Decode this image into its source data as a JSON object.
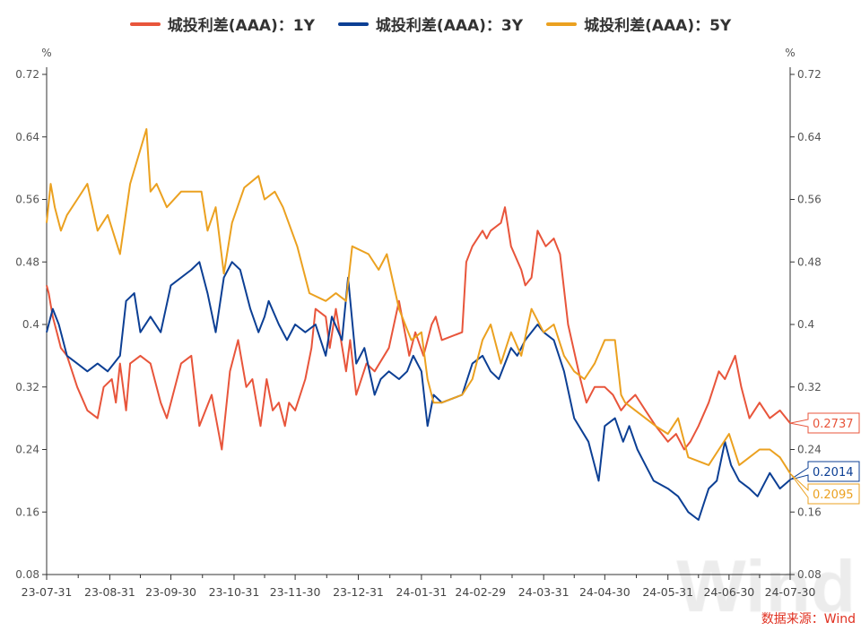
{
  "chart_data": {
    "type": "line",
    "ylabel_left": "%",
    "ylabel_right": "%",
    "ylim": [
      0.08,
      0.72
    ],
    "yticks": [
      "0.08",
      "0.16",
      "0.24",
      "0.32",
      "0.4",
      "0.48",
      "0.56",
      "0.64",
      "0.72"
    ],
    "xlim": [
      "2023-07-31",
      "2024-07-30"
    ],
    "xticks": [
      [
        "2023-07-31",
        "23-07-31"
      ],
      [
        "2023-08-31",
        "23-08-31"
      ],
      [
        "2023-09-30",
        "23-09-30"
      ],
      [
        "2023-10-31",
        "23-10-31"
      ],
      [
        "2023-11-30",
        "23-11-30"
      ],
      [
        "2023-12-31",
        "23-12-31"
      ],
      [
        "2024-01-31",
        "24-01-31"
      ],
      [
        "2024-02-29",
        "24-02-29"
      ],
      [
        "2024-03-31",
        "24-03-31"
      ],
      [
        "2024-04-30",
        "24-04-30"
      ],
      [
        "2024-05-31",
        "24-05-31"
      ],
      [
        "2024-06-30",
        "24-06-30"
      ],
      [
        "2024-07-30",
        "24-07-30"
      ]
    ],
    "grid": false,
    "legend": "top",
    "series": [
      {
        "name": "城投利差(AAA)：1Y",
        "color": "#e8553b",
        "last_label": "0.2737",
        "points": [
          [
            "2023-07-31",
            0.45
          ],
          [
            "2023-08-01",
            0.44
          ],
          [
            "2023-08-03",
            0.41
          ],
          [
            "2023-08-05",
            0.39
          ],
          [
            "2023-08-07",
            0.37
          ],
          [
            "2023-08-10",
            0.36
          ],
          [
            "2023-08-15",
            0.32
          ],
          [
            "2023-08-20",
            0.29
          ],
          [
            "2023-08-25",
            0.28
          ],
          [
            "2023-08-28",
            0.32
          ],
          [
            "2023-09-01",
            0.33
          ],
          [
            "2023-09-03",
            0.3
          ],
          [
            "2023-09-05",
            0.35
          ],
          [
            "2023-09-08",
            0.29
          ],
          [
            "2023-09-10",
            0.35
          ],
          [
            "2023-09-15",
            0.36
          ],
          [
            "2023-09-20",
            0.35
          ],
          [
            "2023-09-25",
            0.3
          ],
          [
            "2023-09-28",
            0.28
          ],
          [
            "2023-10-05",
            0.35
          ],
          [
            "2023-10-10",
            0.36
          ],
          [
            "2023-10-14",
            0.27
          ],
          [
            "2023-10-20",
            0.31
          ],
          [
            "2023-10-25",
            0.24
          ],
          [
            "2023-10-29",
            0.34
          ],
          [
            "2023-11-02",
            0.38
          ],
          [
            "2023-11-06",
            0.32
          ],
          [
            "2023-11-09",
            0.33
          ],
          [
            "2023-11-13",
            0.27
          ],
          [
            "2023-11-16",
            0.33
          ],
          [
            "2023-11-19",
            0.29
          ],
          [
            "2023-11-22",
            0.3
          ],
          [
            "2023-11-25",
            0.27
          ],
          [
            "2023-11-27",
            0.3
          ],
          [
            "2023-11-30",
            0.29
          ],
          [
            "2023-12-05",
            0.33
          ],
          [
            "2023-12-08",
            0.37
          ],
          [
            "2023-12-10",
            0.42
          ],
          [
            "2023-12-15",
            0.41
          ],
          [
            "2023-12-17",
            0.37
          ],
          [
            "2023-12-20",
            0.42
          ],
          [
            "2023-12-25",
            0.34
          ],
          [
            "2023-12-27",
            0.38
          ],
          [
            "2023-12-30",
            0.31
          ],
          [
            "2024-01-04",
            0.35
          ],
          [
            "2024-01-08",
            0.34
          ],
          [
            "2024-01-15",
            0.37
          ],
          [
            "2024-01-20",
            0.43
          ],
          [
            "2024-01-25",
            0.36
          ],
          [
            "2024-01-28",
            0.39
          ],
          [
            "2024-02-01",
            0.36
          ],
          [
            "2024-02-05",
            0.4
          ],
          [
            "2024-02-07",
            0.41
          ],
          [
            "2024-02-10",
            0.38
          ],
          [
            "2024-02-20",
            0.39
          ],
          [
            "2024-02-22",
            0.48
          ],
          [
            "2024-02-25",
            0.5
          ],
          [
            "2024-03-01",
            0.52
          ],
          [
            "2024-03-03",
            0.51
          ],
          [
            "2024-03-05",
            0.52
          ],
          [
            "2024-03-10",
            0.53
          ],
          [
            "2024-03-12",
            0.55
          ],
          [
            "2024-03-15",
            0.5
          ],
          [
            "2024-03-20",
            0.47
          ],
          [
            "2024-03-22",
            0.45
          ],
          [
            "2024-03-25",
            0.46
          ],
          [
            "2024-03-28",
            0.52
          ],
          [
            "2024-04-01",
            0.5
          ],
          [
            "2024-04-05",
            0.51
          ],
          [
            "2024-04-08",
            0.49
          ],
          [
            "2024-04-12",
            0.4
          ],
          [
            "2024-04-18",
            0.33
          ],
          [
            "2024-04-21",
            0.3
          ],
          [
            "2024-04-25",
            0.32
          ],
          [
            "2024-04-30",
            0.32
          ],
          [
            "2024-05-04",
            0.31
          ],
          [
            "2024-05-08",
            0.29
          ],
          [
            "2024-05-11",
            0.3
          ],
          [
            "2024-05-15",
            0.31
          ],
          [
            "2024-05-20",
            0.29
          ],
          [
            "2024-05-25",
            0.27
          ],
          [
            "2024-05-31",
            0.25
          ],
          [
            "2024-06-04",
            0.26
          ],
          [
            "2024-06-08",
            0.24
          ],
          [
            "2024-06-11",
            0.25
          ],
          [
            "2024-06-15",
            0.27
          ],
          [
            "2024-06-20",
            0.3
          ],
          [
            "2024-06-25",
            0.34
          ],
          [
            "2024-06-28",
            0.33
          ],
          [
            "2024-07-03",
            0.36
          ],
          [
            "2024-07-06",
            0.32
          ],
          [
            "2024-07-10",
            0.28
          ],
          [
            "2024-07-15",
            0.3
          ],
          [
            "2024-07-20",
            0.28
          ],
          [
            "2024-07-25",
            0.29
          ],
          [
            "2024-07-30",
            0.2737
          ]
        ]
      },
      {
        "name": "城投利差(AAA)：3Y",
        "color": "#0c3f94",
        "last_label": "0.2014",
        "points": [
          [
            "2023-07-31",
            0.39
          ],
          [
            "2023-08-03",
            0.42
          ],
          [
            "2023-08-06",
            0.4
          ],
          [
            "2023-08-10",
            0.36
          ],
          [
            "2023-08-15",
            0.35
          ],
          [
            "2023-08-20",
            0.34
          ],
          [
            "2023-08-25",
            0.35
          ],
          [
            "2023-08-30",
            0.34
          ],
          [
            "2023-09-05",
            0.36
          ],
          [
            "2023-09-08",
            0.43
          ],
          [
            "2023-09-12",
            0.44
          ],
          [
            "2023-09-15",
            0.39
          ],
          [
            "2023-09-20",
            0.41
          ],
          [
            "2023-09-25",
            0.39
          ],
          [
            "2023-09-30",
            0.45
          ],
          [
            "2023-10-10",
            0.47
          ],
          [
            "2023-10-14",
            0.48
          ],
          [
            "2023-10-18",
            0.44
          ],
          [
            "2023-10-22",
            0.39
          ],
          [
            "2023-10-26",
            0.46
          ],
          [
            "2023-10-30",
            0.48
          ],
          [
            "2023-11-03",
            0.47
          ],
          [
            "2023-11-08",
            0.42
          ],
          [
            "2023-11-12",
            0.39
          ],
          [
            "2023-11-15",
            0.41
          ],
          [
            "2023-11-17",
            0.43
          ],
          [
            "2023-11-22",
            0.4
          ],
          [
            "2023-11-26",
            0.38
          ],
          [
            "2023-11-30",
            0.4
          ],
          [
            "2023-12-05",
            0.39
          ],
          [
            "2023-12-10",
            0.4
          ],
          [
            "2023-12-15",
            0.36
          ],
          [
            "2023-12-18",
            0.41
          ],
          [
            "2023-12-23",
            0.38
          ],
          [
            "2023-12-26",
            0.46
          ],
          [
            "2023-12-30",
            0.35
          ],
          [
            "2024-01-03",
            0.37
          ],
          [
            "2024-01-08",
            0.31
          ],
          [
            "2024-01-11",
            0.33
          ],
          [
            "2024-01-15",
            0.34
          ],
          [
            "2024-01-20",
            0.33
          ],
          [
            "2024-01-24",
            0.34
          ],
          [
            "2024-01-27",
            0.36
          ],
          [
            "2024-01-31",
            0.34
          ],
          [
            "2024-02-03",
            0.27
          ],
          [
            "2024-02-06",
            0.31
          ],
          [
            "2024-02-10",
            0.3
          ],
          [
            "2024-02-20",
            0.31
          ],
          [
            "2024-02-25",
            0.35
          ],
          [
            "2024-03-01",
            0.36
          ],
          [
            "2024-03-05",
            0.34
          ],
          [
            "2024-03-09",
            0.33
          ],
          [
            "2024-03-15",
            0.37
          ],
          [
            "2024-03-18",
            0.36
          ],
          [
            "2024-03-22",
            0.38
          ],
          [
            "2024-03-28",
            0.4
          ],
          [
            "2024-03-31",
            0.39
          ],
          [
            "2024-04-05",
            0.38
          ],
          [
            "2024-04-10",
            0.34
          ],
          [
            "2024-04-15",
            0.28
          ],
          [
            "2024-04-22",
            0.25
          ],
          [
            "2024-04-27",
            0.2
          ],
          [
            "2024-04-30",
            0.27
          ],
          [
            "2024-05-05",
            0.28
          ],
          [
            "2024-05-09",
            0.25
          ],
          [
            "2024-05-12",
            0.27
          ],
          [
            "2024-05-16",
            0.24
          ],
          [
            "2024-05-20",
            0.22
          ],
          [
            "2024-05-24",
            0.2
          ],
          [
            "2024-05-31",
            0.19
          ],
          [
            "2024-06-05",
            0.18
          ],
          [
            "2024-06-10",
            0.16
          ],
          [
            "2024-06-15",
            0.15
          ],
          [
            "2024-06-20",
            0.19
          ],
          [
            "2024-06-24",
            0.2
          ],
          [
            "2024-06-28",
            0.25
          ],
          [
            "2024-07-01",
            0.22
          ],
          [
            "2024-07-05",
            0.2
          ],
          [
            "2024-07-10",
            0.19
          ],
          [
            "2024-07-14",
            0.18
          ],
          [
            "2024-07-20",
            0.21
          ],
          [
            "2024-07-25",
            0.19
          ],
          [
            "2024-07-30",
            0.2014
          ]
        ]
      },
      {
        "name": "城投利差(AAA)：5Y",
        "color": "#eba120",
        "last_label": "0.2095",
        "points": [
          [
            "2023-07-31",
            0.53
          ],
          [
            "2023-08-02",
            0.58
          ],
          [
            "2023-08-04",
            0.55
          ],
          [
            "2023-08-07",
            0.52
          ],
          [
            "2023-08-10",
            0.54
          ],
          [
            "2023-08-15",
            0.56
          ],
          [
            "2023-08-20",
            0.58
          ],
          [
            "2023-08-25",
            0.52
          ],
          [
            "2023-08-30",
            0.54
          ],
          [
            "2023-09-05",
            0.49
          ],
          [
            "2023-09-10",
            0.58
          ],
          [
            "2023-09-18",
            0.65
          ],
          [
            "2023-09-20",
            0.57
          ],
          [
            "2023-09-23",
            0.58
          ],
          [
            "2023-09-28",
            0.55
          ],
          [
            "2023-10-05",
            0.57
          ],
          [
            "2023-10-15",
            0.57
          ],
          [
            "2023-10-18",
            0.52
          ],
          [
            "2023-10-22",
            0.55
          ],
          [
            "2023-10-26",
            0.465
          ],
          [
            "2023-10-30",
            0.53
          ],
          [
            "2023-11-05",
            0.575
          ],
          [
            "2023-11-12",
            0.59
          ],
          [
            "2023-11-15",
            0.56
          ],
          [
            "2023-11-20",
            0.57
          ],
          [
            "2023-11-24",
            0.55
          ],
          [
            "2023-12-01",
            0.5
          ],
          [
            "2023-12-07",
            0.44
          ],
          [
            "2023-12-15",
            0.43
          ],
          [
            "2023-12-20",
            0.44
          ],
          [
            "2023-12-25",
            0.43
          ],
          [
            "2023-12-28",
            0.5
          ],
          [
            "2024-01-05",
            0.49
          ],
          [
            "2024-01-10",
            0.47
          ],
          [
            "2024-01-14",
            0.49
          ],
          [
            "2024-01-20",
            0.42
          ],
          [
            "2024-01-26",
            0.38
          ],
          [
            "2024-01-31",
            0.39
          ],
          [
            "2024-02-03",
            0.33
          ],
          [
            "2024-02-06",
            0.3
          ],
          [
            "2024-02-10",
            0.3
          ],
          [
            "2024-02-20",
            0.31
          ],
          [
            "2024-02-25",
            0.33
          ],
          [
            "2024-03-01",
            0.38
          ],
          [
            "2024-03-05",
            0.4
          ],
          [
            "2024-03-10",
            0.35
          ],
          [
            "2024-03-15",
            0.39
          ],
          [
            "2024-03-20",
            0.36
          ],
          [
            "2024-03-25",
            0.42
          ],
          [
            "2024-03-31",
            0.39
          ],
          [
            "2024-04-05",
            0.4
          ],
          [
            "2024-04-10",
            0.36
          ],
          [
            "2024-04-15",
            0.34
          ],
          [
            "2024-04-20",
            0.33
          ],
          [
            "2024-04-25",
            0.35
          ],
          [
            "2024-04-30",
            0.38
          ],
          [
            "2024-05-05",
            0.38
          ],
          [
            "2024-05-08",
            0.31
          ],
          [
            "2024-05-10",
            0.3
          ],
          [
            "2024-05-15",
            0.29
          ],
          [
            "2024-05-20",
            0.28
          ],
          [
            "2024-05-25",
            0.27
          ],
          [
            "2024-05-31",
            0.26
          ],
          [
            "2024-06-05",
            0.28
          ],
          [
            "2024-06-10",
            0.23
          ],
          [
            "2024-06-20",
            0.22
          ],
          [
            "2024-06-25",
            0.24
          ],
          [
            "2024-06-30",
            0.26
          ],
          [
            "2024-07-05",
            0.22
          ],
          [
            "2024-07-10",
            0.23
          ],
          [
            "2024-07-15",
            0.24
          ],
          [
            "2024-07-20",
            0.24
          ],
          [
            "2024-07-25",
            0.23
          ],
          [
            "2024-07-30",
            0.2095
          ]
        ]
      }
    ]
  },
  "watermark": "Wind",
  "source": "数据来源：Wind"
}
